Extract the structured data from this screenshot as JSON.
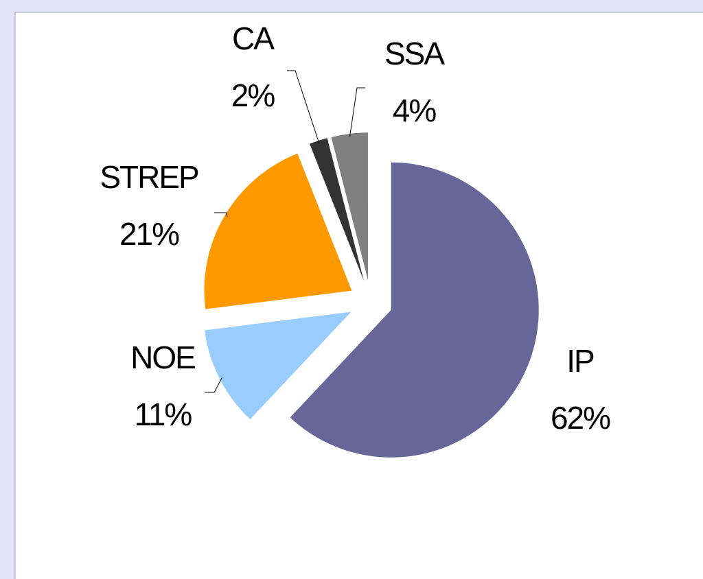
{
  "chart_data": {
    "type": "pie",
    "categories": [
      "IP",
      "NOE",
      "STREP",
      "CA",
      "SSA"
    ],
    "values": [
      62,
      11,
      21,
      2,
      4
    ],
    "value_labels": [
      "62%",
      "11%",
      "21%",
      "2%",
      "4%"
    ],
    "colors": [
      "#666699",
      "#99ccff",
      "#ff9900",
      "#333333",
      "#808080"
    ]
  }
}
